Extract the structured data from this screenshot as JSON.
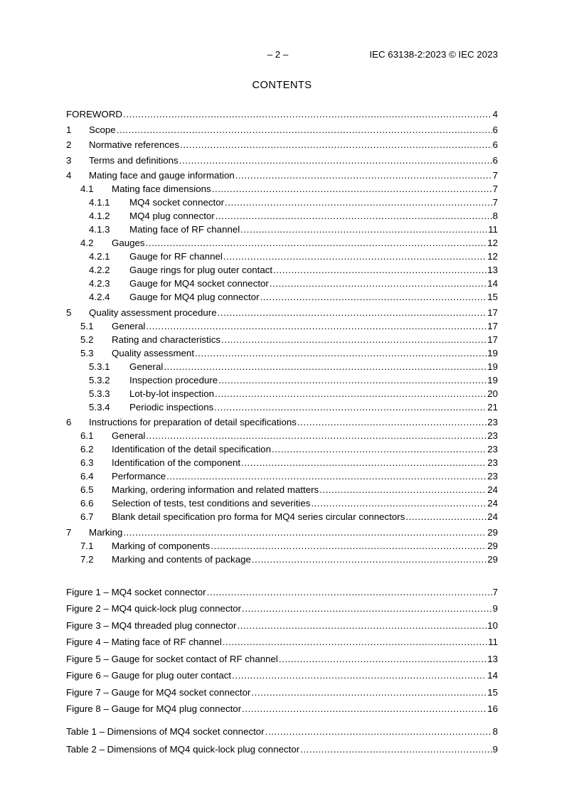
{
  "header": {
    "page_marker": "– 2 –",
    "doc_reference": "IEC 63138-2:2023 © IEC 2023"
  },
  "title": "CONTENTS",
  "toc": {
    "sections": [
      {
        "num": "",
        "label": "FOREWORD",
        "page": "4",
        "level": 0
      },
      {
        "num": "1",
        "label": "Scope",
        "page": "6",
        "level": 1
      },
      {
        "num": "2",
        "label": "Normative references",
        "page": "6",
        "level": 1
      },
      {
        "num": "3",
        "label": "Terms and definitions",
        "page": "6",
        "level": 1
      },
      {
        "num": "4",
        "label": "Mating face and gauge information",
        "page": "7",
        "level": 1
      },
      {
        "num": "4.1",
        "label": "Mating face dimensions",
        "page": "7",
        "level": 2
      },
      {
        "num": "4.1.1",
        "label": "MQ4 socket connector",
        "page": "7",
        "level": 3
      },
      {
        "num": "4.1.2",
        "label": "MQ4 plug connector",
        "page": "8",
        "level": 3
      },
      {
        "num": "4.1.3",
        "label": "Mating face of RF channel",
        "page": "11",
        "level": 3
      },
      {
        "num": "4.2",
        "label": "Gauges",
        "page": "12",
        "level": 2
      },
      {
        "num": "4.2.1",
        "label": "Gauge for RF channel",
        "page": "12",
        "level": 3
      },
      {
        "num": "4.2.2",
        "label": "Gauge rings for plug outer contact",
        "page": "13",
        "level": 3
      },
      {
        "num": "4.2.3",
        "label": "Gauge for MQ4 socket connector",
        "page": "14",
        "level": 3
      },
      {
        "num": "4.2.4",
        "label": "Gauge for MQ4 plug connector",
        "page": "15",
        "level": 3
      },
      {
        "num": "5",
        "label": "Quality assessment procedure",
        "page": "17",
        "level": 1
      },
      {
        "num": "5.1",
        "label": "General",
        "page": "17",
        "level": 2
      },
      {
        "num": "5.2",
        "label": "Rating and characteristics",
        "page": "17",
        "level": 2
      },
      {
        "num": "5.3",
        "label": "Quality assessment",
        "page": "19",
        "level": 2
      },
      {
        "num": "5.3.1",
        "label": "General",
        "page": "19",
        "level": 3
      },
      {
        "num": "5.3.2",
        "label": "Inspection procedure",
        "page": "19",
        "level": 3
      },
      {
        "num": "5.3.3",
        "label": "Lot-by-lot inspection",
        "page": "20",
        "level": 3
      },
      {
        "num": "5.3.4",
        "label": "Periodic inspections",
        "page": "21",
        "level": 3
      },
      {
        "num": "6",
        "label": "Instructions for preparation of detail specifications",
        "page": "23",
        "level": 1
      },
      {
        "num": "6.1",
        "label": "General",
        "page": "23",
        "level": 2
      },
      {
        "num": "6.2",
        "label": "Identification of the detail specification",
        "page": "23",
        "level": 2
      },
      {
        "num": "6.3",
        "label": "Identification of the component",
        "page": "23",
        "level": 2
      },
      {
        "num": "6.4",
        "label": "Performance",
        "page": "23",
        "level": 2
      },
      {
        "num": "6.5",
        "label": "Marking, ordering information and related matters",
        "page": "24",
        "level": 2
      },
      {
        "num": "6.6",
        "label": "Selection of tests, test conditions and severities",
        "page": "24",
        "level": 2
      },
      {
        "num": "6.7",
        "label": "Blank detail specification pro forma for MQ4 series circular connectors",
        "page": "24",
        "level": 2
      },
      {
        "num": "7",
        "label": "Marking",
        "page": "29",
        "level": 1
      },
      {
        "num": "7.1",
        "label": "Marking of components",
        "page": "29",
        "level": 2
      },
      {
        "num": "7.2",
        "label": "Marking and contents of package",
        "page": "29",
        "level": 2
      }
    ],
    "figures": [
      {
        "num": "",
        "label": "Figure 1 – MQ4 socket connector",
        "page": "7",
        "level": 0
      },
      {
        "num": "",
        "label": "Figure 2 – MQ4 quick-lock plug connector",
        "page": "9",
        "level": 0
      },
      {
        "num": "",
        "label": "Figure 3 – MQ4 threaded plug connector",
        "page": "10",
        "level": 0
      },
      {
        "num": "",
        "label": "Figure 4 – Mating face of RF channel",
        "page": "11",
        "level": 0
      },
      {
        "num": "",
        "label": "Figure 5 – Gauge for socket contact of RF channel",
        "page": "13",
        "level": 0
      },
      {
        "num": "",
        "label": "Figure 6 – Gauge for plug outer contact",
        "page": "14",
        "level": 0
      },
      {
        "num": "",
        "label": "Figure 7 – Gauge for MQ4 socket connector",
        "page": "15",
        "level": 0
      },
      {
        "num": "",
        "label": "Figure 8 – Gauge for MQ4 plug connector",
        "page": "16",
        "level": 0
      }
    ],
    "tables": [
      {
        "num": "",
        "label": "Table 1 – Dimensions of MQ4 socket connector",
        "page": "8",
        "level": 0
      },
      {
        "num": "",
        "label": "Table 2 – Dimensions of MQ4 quick-lock plug connector",
        "page": "9",
        "level": 0
      }
    ]
  }
}
